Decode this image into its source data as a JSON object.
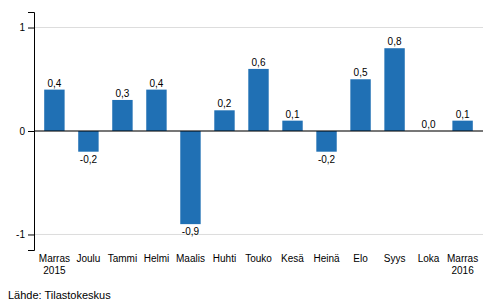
{
  "chart_data": {
    "type": "bar",
    "categories": [
      "Marras\n2015",
      "Joulu",
      "Tammi",
      "Helmi",
      "Maalis",
      "Huhti",
      "Touko",
      "Kesä",
      "Heinä",
      "Elo",
      "Syys",
      "Loka",
      "Marras\n2016"
    ],
    "values": [
      0.4,
      -0.2,
      0.3,
      0.4,
      -0.9,
      0.2,
      0.6,
      0.1,
      -0.2,
      0.5,
      0.8,
      0.0,
      0.1
    ],
    "value_labels": [
      "0,4",
      "-0,2",
      "0,3",
      "0,4",
      "-0,9",
      "0,2",
      "0,6",
      "0,1",
      "-0,2",
      "0,5",
      "0,8",
      "0,0",
      "0,1"
    ],
    "data_labels": true,
    "color": "#2070B4",
    "ylim": [
      -1.15,
      1.15
    ],
    "yticks": [
      -1,
      0,
      1
    ],
    "grid": true,
    "annotations": [
      "Lähde: Tilastokeskus"
    ]
  }
}
